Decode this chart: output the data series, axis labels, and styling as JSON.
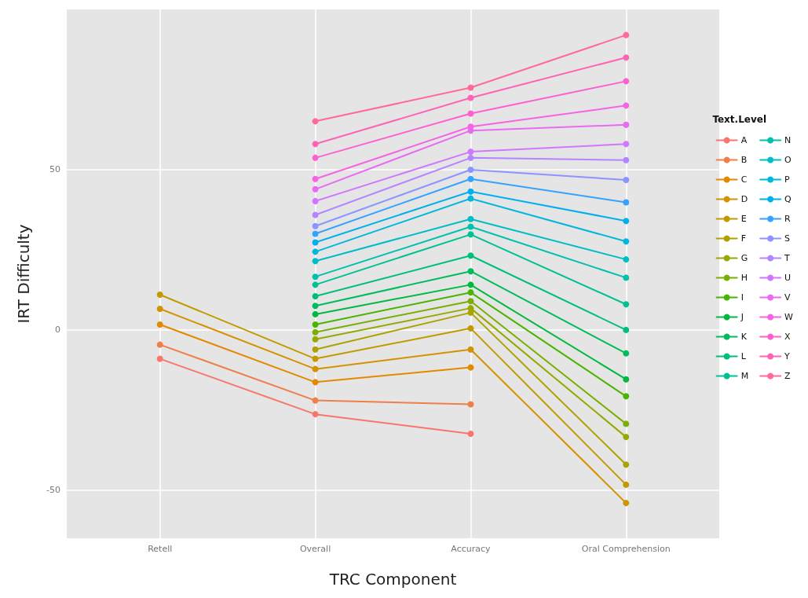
{
  "chart_data": {
    "type": "line",
    "xlabel": "TRC Component",
    "ylabel": "IRT Difficulty",
    "legend_title": "Text.Level",
    "categories": [
      "Retell",
      "Overall",
      "Accuracy",
      "Oral Comprehension"
    ],
    "ylim": [
      -65,
      100
    ],
    "yticks": [
      -50,
      0,
      50
    ],
    "grid": true,
    "legend": "right",
    "marker": "circle",
    "line_style": "solid",
    "series": [
      {
        "name": "A",
        "color": "#F8766D",
        "values": [
          -9,
          -26.3,
          -32.4,
          null
        ]
      },
      {
        "name": "B",
        "color": "#EF7F49",
        "values": [
          -4.6,
          -22,
          -23.2,
          null
        ]
      },
      {
        "name": "C",
        "color": "#E38900",
        "values": [
          1.7,
          -16.3,
          -11.7,
          null
        ]
      },
      {
        "name": "D",
        "color": "#D49200",
        "values": [
          6.6,
          -12.2,
          -6.1,
          -54
        ]
      },
      {
        "name": "E",
        "color": "#C29A00",
        "values": [
          11,
          -9,
          0.5,
          -48.3
        ]
      },
      {
        "name": "F",
        "color": "#AEA200",
        "values": [
          null,
          -6.1,
          5.4,
          -42
        ]
      },
      {
        "name": "G",
        "color": "#96A900",
        "values": [
          null,
          -2.9,
          6.8,
          -33.4
        ]
      },
      {
        "name": "H",
        "color": "#7AAE00",
        "values": [
          null,
          -0.7,
          9,
          -29.3
        ]
      },
      {
        "name": "I",
        "color": "#49B500",
        "values": [
          null,
          1.7,
          11.7,
          -20.7
        ]
      },
      {
        "name": "J",
        "color": "#00B93D",
        "values": [
          null,
          4.9,
          14.1,
          -15.4
        ]
      },
      {
        "name": "K",
        "color": "#00BC5D",
        "values": [
          null,
          7.5,
          18.3,
          -7.3
        ]
      },
      {
        "name": "L",
        "color": "#00BF79",
        "values": [
          null,
          10.5,
          23.2,
          0
        ]
      },
      {
        "name": "M",
        "color": "#00C094",
        "values": [
          null,
          14.1,
          29.8,
          8
        ]
      },
      {
        "name": "N",
        "color": "#00C0AE",
        "values": [
          null,
          16.6,
          32.2,
          16.3
        ]
      },
      {
        "name": "O",
        "color": "#00BDC6",
        "values": [
          null,
          21.5,
          34.6,
          22
        ]
      },
      {
        "name": "P",
        "color": "#00B8DB",
        "values": [
          null,
          24.4,
          41,
          27.6
        ]
      },
      {
        "name": "Q",
        "color": "#00B0EE",
        "values": [
          null,
          27.3,
          43.2,
          34
        ]
      },
      {
        "name": "R",
        "color": "#35A2FF",
        "values": [
          null,
          30,
          47.1,
          39.8
        ]
      },
      {
        "name": "S",
        "color": "#8B94FF",
        "values": [
          null,
          32.4,
          50,
          46.8
        ]
      },
      {
        "name": "T",
        "color": "#B385FF",
        "values": [
          null,
          35.9,
          53.7,
          53
        ]
      },
      {
        "name": "U",
        "color": "#D177FD",
        "values": [
          null,
          40.2,
          55.6,
          58
        ]
      },
      {
        "name": "V",
        "color": "#E76BF3",
        "values": [
          null,
          43.9,
          62.2,
          64
        ]
      },
      {
        "name": "W",
        "color": "#F564E3",
        "values": [
          null,
          47.1,
          63.4,
          70
        ]
      },
      {
        "name": "X",
        "color": "#FE61CF",
        "values": [
          null,
          53.7,
          67.5,
          77.6
        ]
      },
      {
        "name": "Y",
        "color": "#FF63B6",
        "values": [
          null,
          58,
          72.4,
          85
        ]
      },
      {
        "name": "Z",
        "color": "#FF6A98",
        "values": [
          null,
          65.1,
          75.6,
          92
        ]
      }
    ]
  }
}
